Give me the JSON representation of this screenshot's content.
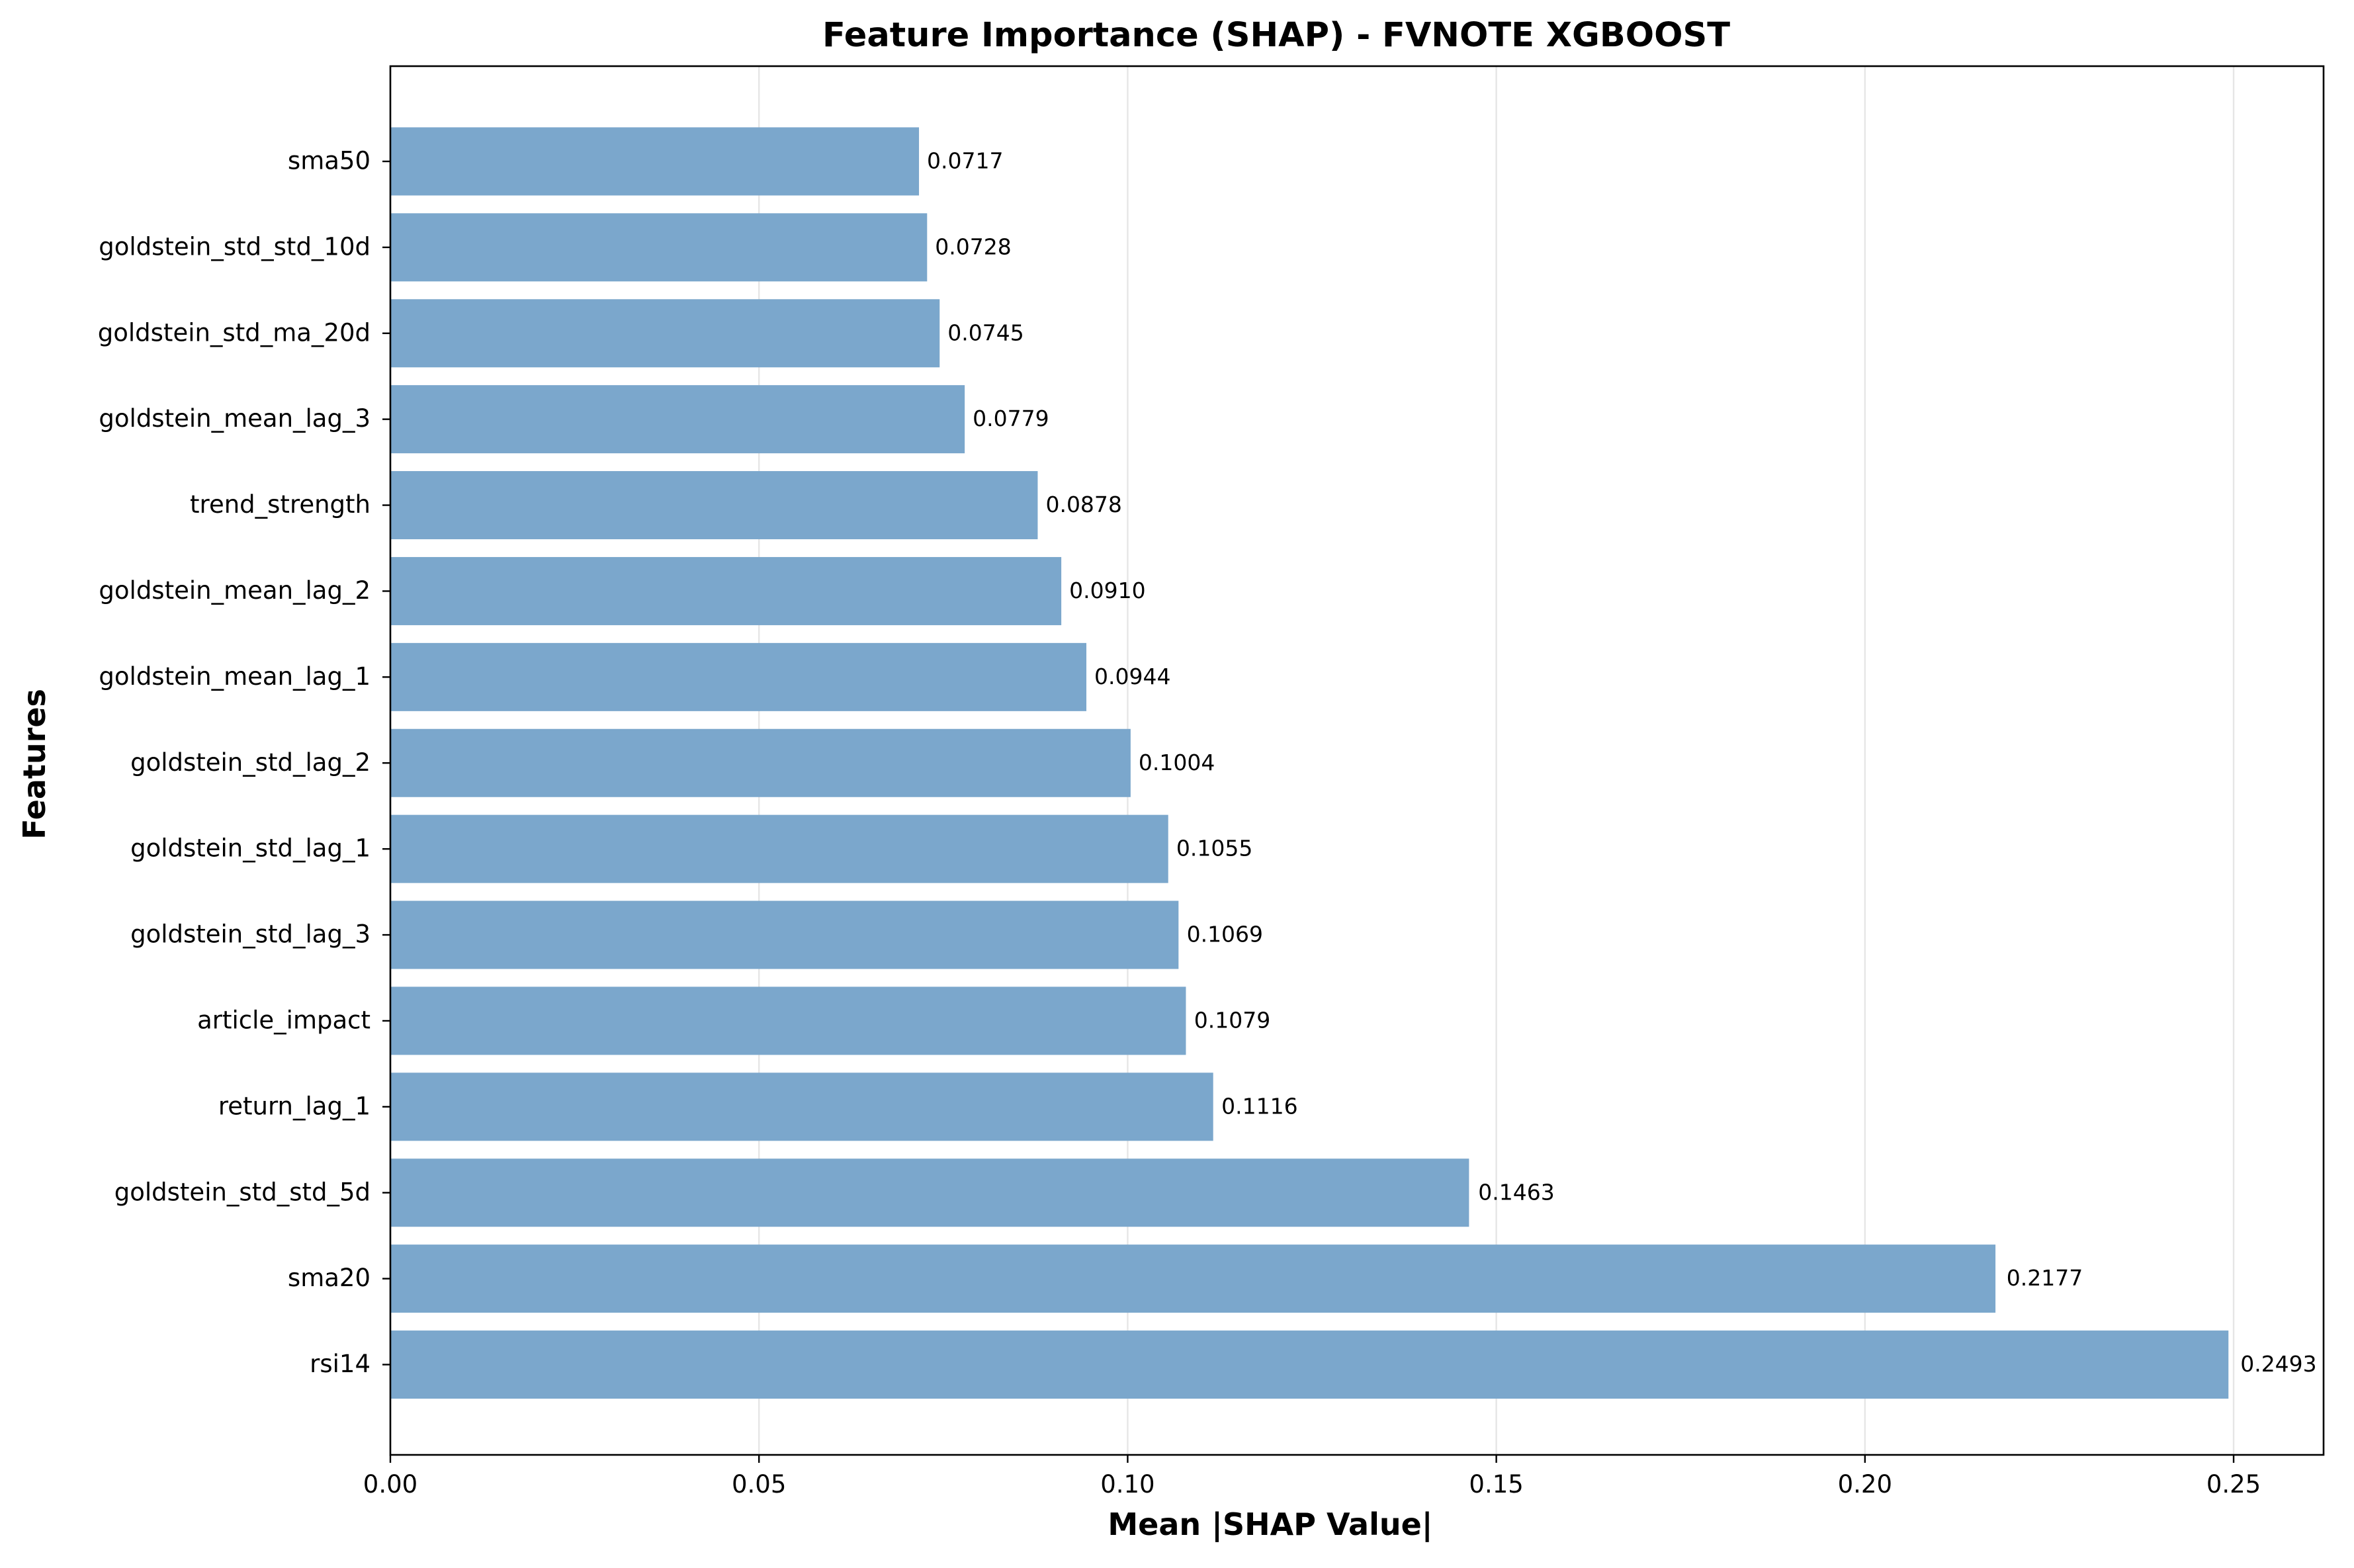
{
  "chart_data": {
    "type": "bar",
    "orientation": "horizontal",
    "title": "Feature Importance (SHAP) - FVNOTE XGBOOST",
    "xlabel": "Mean |SHAP Value|",
    "ylabel": "Features",
    "xlim": [
      0,
      0.2622
    ],
    "xticks": [
      0.0,
      0.05,
      0.1,
      0.15,
      0.2,
      0.25
    ],
    "xtick_labels": [
      "0.00",
      "0.05",
      "0.10",
      "0.15",
      "0.20",
      "0.25"
    ],
    "grid": "x-axis vertical lines",
    "bar_color": "#7ba7cc",
    "categories": [
      "sma50",
      "goldstein_std_std_10d",
      "goldstein_std_ma_20d",
      "goldstein_mean_lag_3",
      "trend_strength",
      "goldstein_mean_lag_2",
      "goldstein_mean_lag_1",
      "goldstein_std_lag_2",
      "goldstein_std_lag_1",
      "goldstein_std_lag_3",
      "article_impact",
      "return_lag_1",
      "goldstein_std_std_5d",
      "sma20",
      "rsi14"
    ],
    "values": [
      0.0717,
      0.0728,
      0.0745,
      0.0779,
      0.0878,
      0.091,
      0.0944,
      0.1004,
      0.1055,
      0.1069,
      0.1079,
      0.1116,
      0.1463,
      0.2177,
      0.2493
    ],
    "value_labels": [
      "0.0717",
      "0.0728",
      "0.0745",
      "0.0779",
      "0.0878",
      "0.0910",
      "0.0944",
      "0.1004",
      "0.1055",
      "0.1069",
      "0.1079",
      "0.1116",
      "0.1463",
      "0.2177",
      "0.2493"
    ]
  }
}
